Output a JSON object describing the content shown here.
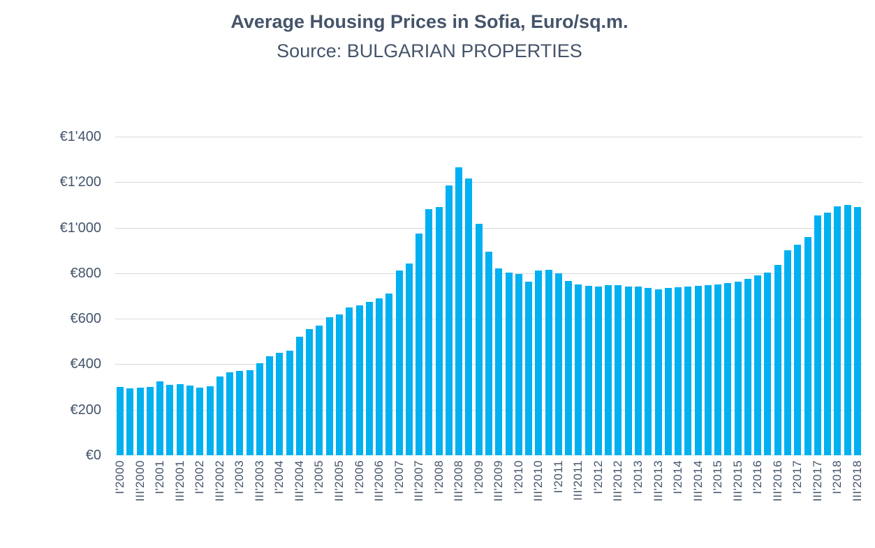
{
  "title": "Average Housing Prices in Sofia, Euro/sq.m.",
  "subtitle": "Source: BULGARIAN PROPERTIES",
  "colors": {
    "bar": "#00b0f0",
    "grid": "#d9d9d9",
    "text": "#44546a"
  },
  "chart_data": {
    "type": "bar",
    "title": "Average Housing Prices in Sofia, Euro/sq.m.",
    "subtitle": "Source: BULGARIAN PROPERTIES",
    "xlabel": "",
    "ylabel": "",
    "ylim": [
      0,
      1400
    ],
    "ytick_step": 200,
    "ytick_labels": [
      "€0",
      "€200",
      "€400",
      "€600",
      "€800",
      "€1'000",
      "€1'200",
      "€1'400"
    ],
    "grid": true,
    "legend": false,
    "currency_unit": "Euro/sq.m.",
    "xtick_labels": [
      "I'2000",
      "III'2000",
      "I'2001",
      "III'2001",
      "I'2002",
      "III'2002",
      "I'2003",
      "III'2003",
      "I'2004",
      "III'2004",
      "I'2005",
      "III'2005",
      "I'2006",
      "III'2006",
      "I'2007",
      "III'2007",
      "I'2008",
      "III'2008",
      "I'2009",
      "III'2009",
      "I'2010",
      "III'2010",
      "I'2011",
      "III'2011",
      "I'2012",
      "III'2012",
      "I'2013",
      "III'2013",
      "I'2014",
      "III'2014",
      "I'2015",
      "III'2015",
      "I'2016",
      "III'2016",
      "I'2017",
      "III'2017",
      "I'2018",
      "III'2018"
    ],
    "categories": [
      "I'2000",
      "II'2000",
      "III'2000",
      "IV'2000",
      "I'2001",
      "II'2001",
      "III'2001",
      "IV'2001",
      "I'2002",
      "II'2002",
      "III'2002",
      "IV'2002",
      "I'2003",
      "II'2003",
      "III'2003",
      "IV'2003",
      "I'2004",
      "II'2004",
      "III'2004",
      "IV'2004",
      "I'2005",
      "II'2005",
      "III'2005",
      "IV'2005",
      "I'2006",
      "II'2006",
      "III'2006",
      "IV'2006",
      "I'2007",
      "II'2007",
      "III'2007",
      "IV'2007",
      "I'2008",
      "II'2008",
      "III'2008",
      "IV'2008",
      "I'2009",
      "II'2009",
      "III'2009",
      "IV'2009",
      "I'2010",
      "II'2010",
      "III'2010",
      "IV'2010",
      "I'2011",
      "II'2011",
      "III'2011",
      "IV'2011",
      "I'2012",
      "II'2012",
      "III'2012",
      "IV'2012",
      "I'2013",
      "II'2013",
      "III'2013",
      "IV'2013",
      "I'2014",
      "II'2014",
      "III'2014",
      "IV'2014",
      "I'2015",
      "II'2015",
      "III'2015",
      "IV'2015",
      "I'2016",
      "II'2016",
      "III'2016",
      "IV'2016",
      "I'2017",
      "II'2017",
      "III'2017",
      "IV'2017",
      "I'2018",
      "II'2018",
      "III'2018"
    ],
    "values": [
      300,
      295,
      298,
      300,
      325,
      310,
      312,
      305,
      298,
      302,
      345,
      365,
      370,
      375,
      405,
      435,
      450,
      460,
      520,
      555,
      570,
      608,
      618,
      650,
      660,
      675,
      690,
      710,
      812,
      842,
      975,
      1082,
      1092,
      1186,
      1266,
      1216,
      1016,
      896,
      822,
      802,
      796,
      762,
      812,
      816,
      800,
      765,
      750,
      745,
      742,
      746,
      746,
      742,
      740,
      735,
      730,
      734,
      737,
      741,
      745,
      747,
      750,
      756,
      764,
      776,
      790,
      802,
      835,
      900,
      925,
      960,
      1055,
      1065,
      1095,
      1100,
      1092
    ]
  }
}
